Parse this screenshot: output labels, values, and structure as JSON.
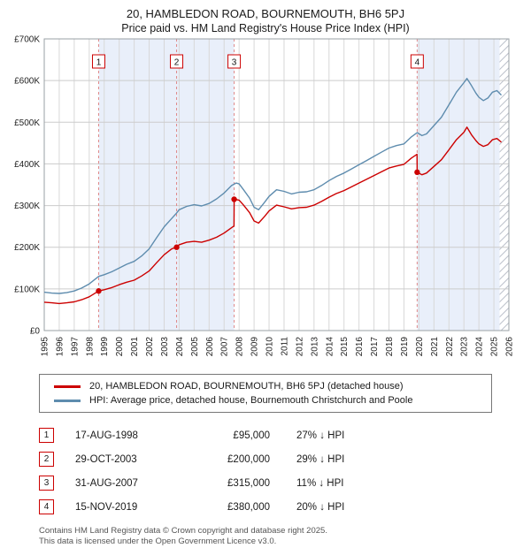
{
  "title": {
    "line1": "20, HAMBLEDON ROAD, BOURNEMOUTH, BH6 5PJ",
    "line2": "Price paid vs. HM Land Registry's House Price Index (HPI)"
  },
  "chart_data": {
    "type": "line",
    "x_range": [
      1995,
      2026
    ],
    "y_range": [
      0,
      700000
    ],
    "x_ticks": [
      1995,
      1996,
      1997,
      1998,
      1999,
      2000,
      2001,
      2002,
      2003,
      2004,
      2005,
      2006,
      2007,
      2008,
      2009,
      2010,
      2011,
      2012,
      2013,
      2014,
      2015,
      2016,
      2017,
      2018,
      2019,
      2020,
      2021,
      2022,
      2023,
      2024,
      2025,
      2026
    ],
    "y_ticks": [
      "£0",
      "£100K",
      "£200K",
      "£300K",
      "£400K",
      "£500K",
      "£600K",
      "£700K"
    ],
    "grid": true,
    "colors": {
      "property": "#cc0000",
      "hpi": "#5e8cae",
      "band": "#e9effa",
      "sale_line": "#e08888",
      "grid_v": "#d8d8d8",
      "grid_h": "#cccccc",
      "border": "#9aa0a6"
    },
    "shaded_bands": [
      [
        1998.63,
        2007.67
      ],
      [
        2019.88,
        2025.38
      ]
    ],
    "hatch_band": [
      2025.38,
      2026
    ],
    "sale_markers": [
      {
        "num": "1",
        "x": 1998.63,
        "y": 95000
      },
      {
        "num": "2",
        "x": 2003.83,
        "y": 200000
      },
      {
        "num": "3",
        "x": 2007.67,
        "y": 315000
      },
      {
        "num": "4",
        "x": 2019.88,
        "y": 380000
      }
    ],
    "series": [
      {
        "name": "20, HAMBLEDON ROAD, BOURNEMOUTH, BH6 5PJ (detached house)",
        "color": "#cc0000",
        "points": [
          [
            1995.0,
            68000
          ],
          [
            1995.5,
            66500
          ],
          [
            1996.0,
            65000
          ],
          [
            1996.5,
            66500
          ],
          [
            1997.0,
            69000
          ],
          [
            1997.5,
            74000
          ],
          [
            1998.0,
            81000
          ],
          [
            1998.63,
            95000
          ],
          [
            1999.0,
            98000
          ],
          [
            1999.5,
            103000
          ],
          [
            2000.0,
            110000
          ],
          [
            2000.5,
            116000
          ],
          [
            2001.0,
            121000
          ],
          [
            2001.5,
            131000
          ],
          [
            2002.0,
            143000
          ],
          [
            2002.5,
            163000
          ],
          [
            2003.0,
            182000
          ],
          [
            2003.5,
            196000
          ],
          [
            2003.83,
            200000
          ],
          [
            2004.0,
            206000
          ],
          [
            2004.5,
            212000
          ],
          [
            2005.0,
            214000
          ],
          [
            2005.5,
            212000
          ],
          [
            2006.0,
            217000
          ],
          [
            2006.5,
            224000
          ],
          [
            2007.0,
            234000
          ],
          [
            2007.5,
            247000
          ],
          [
            2007.66,
            251000
          ],
          [
            2007.67,
            315000
          ],
          [
            2008.0,
            313000
          ],
          [
            2008.3,
            301000
          ],
          [
            2008.7,
            283000
          ],
          [
            2009.0,
            263000
          ],
          [
            2009.3,
            258000
          ],
          [
            2009.7,
            274000
          ],
          [
            2010.0,
            287000
          ],
          [
            2010.5,
            301000
          ],
          [
            2011.0,
            297000
          ],
          [
            2011.5,
            292000
          ],
          [
            2012.0,
            295000
          ],
          [
            2012.5,
            296000
          ],
          [
            2013.0,
            301000
          ],
          [
            2013.5,
            310000
          ],
          [
            2014.0,
            320000
          ],
          [
            2014.5,
            329000
          ],
          [
            2015.0,
            336000
          ],
          [
            2015.5,
            345000
          ],
          [
            2016.0,
            354000
          ],
          [
            2016.5,
            363000
          ],
          [
            2017.0,
            372000
          ],
          [
            2017.5,
            381000
          ],
          [
            2018.0,
            390000
          ],
          [
            2018.5,
            395000
          ],
          [
            2019.0,
            399000
          ],
          [
            2019.5,
            414000
          ],
          [
            2019.87,
            423000
          ],
          [
            2019.88,
            380000
          ],
          [
            2020.2,
            374000
          ],
          [
            2020.5,
            378000
          ],
          [
            2021.0,
            394000
          ],
          [
            2021.5,
            410000
          ],
          [
            2022.0,
            434000
          ],
          [
            2022.5,
            458000
          ],
          [
            2023.0,
            476000
          ],
          [
            2023.2,
            488000
          ],
          [
            2023.5,
            470000
          ],
          [
            2023.8,
            456000
          ],
          [
            2024.0,
            448000
          ],
          [
            2024.3,
            442000
          ],
          [
            2024.6,
            446000
          ],
          [
            2024.9,
            458000
          ],
          [
            2025.2,
            461000
          ],
          [
            2025.5,
            452000
          ]
        ]
      },
      {
        "name": "HPI: Average price, detached house, Bournemouth Christchurch and Poole",
        "color": "#5e8cae",
        "points": [
          [
            1995.0,
            92000
          ],
          [
            1995.5,
            90000
          ],
          [
            1996.0,
            89000
          ],
          [
            1996.5,
            91000
          ],
          [
            1997.0,
            95000
          ],
          [
            1997.5,
            102000
          ],
          [
            1998.0,
            112000
          ],
          [
            1998.63,
            130000
          ],
          [
            1999.0,
            134000
          ],
          [
            1999.5,
            141000
          ],
          [
            2000.0,
            150000
          ],
          [
            2000.5,
            159000
          ],
          [
            2001.0,
            166000
          ],
          [
            2001.5,
            179000
          ],
          [
            2002.0,
            196000
          ],
          [
            2002.5,
            223000
          ],
          [
            2003.0,
            249000
          ],
          [
            2003.5,
            269000
          ],
          [
            2003.83,
            282000
          ],
          [
            2004.0,
            290000
          ],
          [
            2004.5,
            298000
          ],
          [
            2005.0,
            302000
          ],
          [
            2005.5,
            299000
          ],
          [
            2006.0,
            305000
          ],
          [
            2006.5,
            316000
          ],
          [
            2007.0,
            330000
          ],
          [
            2007.5,
            348000
          ],
          [
            2007.8,
            354000
          ],
          [
            2008.0,
            352000
          ],
          [
            2008.3,
            338000
          ],
          [
            2008.7,
            318000
          ],
          [
            2009.0,
            296000
          ],
          [
            2009.3,
            290000
          ],
          [
            2009.7,
            308000
          ],
          [
            2010.0,
            322000
          ],
          [
            2010.5,
            338000
          ],
          [
            2011.0,
            334000
          ],
          [
            2011.5,
            328000
          ],
          [
            2012.0,
            332000
          ],
          [
            2012.5,
            333000
          ],
          [
            2013.0,
            338000
          ],
          [
            2013.5,
            348000
          ],
          [
            2014.0,
            360000
          ],
          [
            2014.5,
            370000
          ],
          [
            2015.0,
            378000
          ],
          [
            2015.5,
            388000
          ],
          [
            2016.0,
            398000
          ],
          [
            2016.5,
            408000
          ],
          [
            2017.0,
            418000
          ],
          [
            2017.5,
            428000
          ],
          [
            2018.0,
            438000
          ],
          [
            2018.5,
            444000
          ],
          [
            2019.0,
            448000
          ],
          [
            2019.5,
            465000
          ],
          [
            2019.88,
            475000
          ],
          [
            2020.2,
            468000
          ],
          [
            2020.5,
            472000
          ],
          [
            2021.0,
            492000
          ],
          [
            2021.5,
            512000
          ],
          [
            2022.0,
            542000
          ],
          [
            2022.5,
            572000
          ],
          [
            2023.0,
            595000
          ],
          [
            2023.2,
            605000
          ],
          [
            2023.5,
            588000
          ],
          [
            2023.8,
            570000
          ],
          [
            2024.0,
            560000
          ],
          [
            2024.3,
            552000
          ],
          [
            2024.6,
            558000
          ],
          [
            2024.9,
            572000
          ],
          [
            2025.2,
            576000
          ],
          [
            2025.5,
            565000
          ]
        ]
      }
    ]
  },
  "legend": {
    "items": [
      {
        "label": "20, HAMBLEDON ROAD, BOURNEMOUTH, BH6 5PJ (detached house)",
        "color": "#cc0000"
      },
      {
        "label": "HPI: Average price, detached house, Bournemouth Christchurch and Poole",
        "color": "#5e8cae"
      }
    ]
  },
  "transactions": [
    {
      "num": "1",
      "date": "17-AUG-1998",
      "price": "£95,000",
      "hpi": "27% ↓ HPI"
    },
    {
      "num": "2",
      "date": "29-OCT-2003",
      "price": "£200,000",
      "hpi": "29% ↓ HPI"
    },
    {
      "num": "3",
      "date": "31-AUG-2007",
      "price": "£315,000",
      "hpi": "11% ↓ HPI"
    },
    {
      "num": "4",
      "date": "15-NOV-2019",
      "price": "£380,000",
      "hpi": "20% ↓ HPI"
    }
  ],
  "footer": {
    "line1": "Contains HM Land Registry data © Crown copyright and database right 2025.",
    "line2": "This data is licensed under the Open Government Licence v3.0."
  }
}
